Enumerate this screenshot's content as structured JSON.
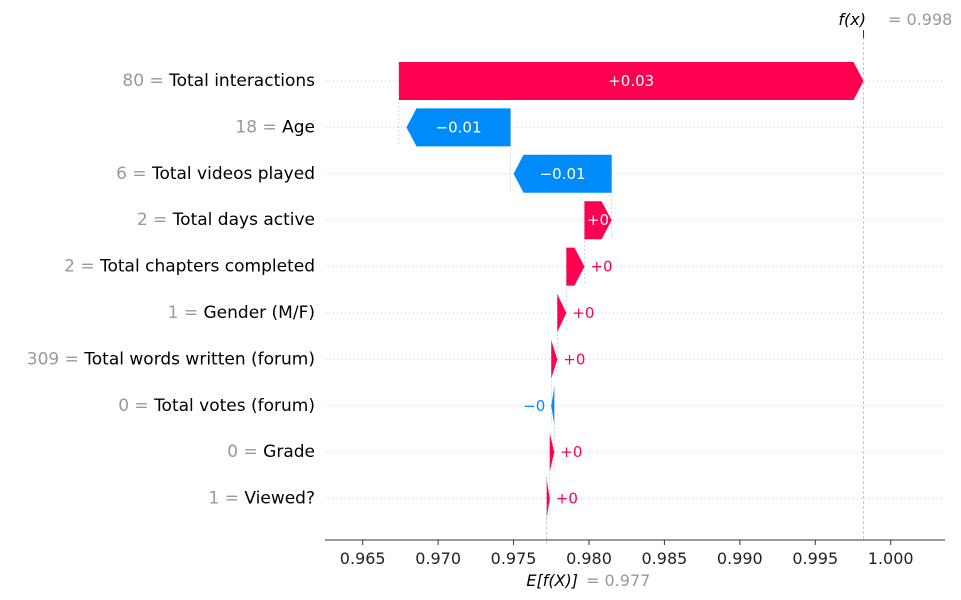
{
  "chart_data": {
    "type": "waterfall",
    "base_value": {
      "label": "E[f(X)]",
      "value_text": "= 0.977",
      "value": 0.9772
    },
    "output_value": {
      "label": "f(x)",
      "value_text": "= 0.998",
      "value": 0.9982
    },
    "features": [
      {
        "value": "80",
        "name": "Total interactions",
        "start": 0.9674,
        "end": 0.9982,
        "label": "+0.03",
        "sign": "pos",
        "label_pos": "inside"
      },
      {
        "value": "18",
        "name": "Age",
        "start": 0.9748,
        "end": 0.9679,
        "label": "−0.01",
        "sign": "neg",
        "label_pos": "inside"
      },
      {
        "value": "6",
        "name": "Total videos played",
        "start": 0.9815,
        "end": 0.975,
        "label": "−0.01",
        "sign": "neg",
        "label_pos": "inside"
      },
      {
        "value": "2",
        "name": "Total days active",
        "start": 0.9797,
        "end": 0.9815,
        "label": "+0",
        "sign": "pos",
        "label_pos": "inside"
      },
      {
        "value": "2",
        "name": "Total chapters completed",
        "start": 0.9785,
        "end": 0.9797,
        "label": "+0",
        "sign": "pos",
        "label_pos": "outside"
      },
      {
        "value": "1",
        "name": "Gender (M/F)",
        "start": 0.9779,
        "end": 0.9785,
        "label": "+0",
        "sign": "pos",
        "label_pos": "outside"
      },
      {
        "value": "309",
        "name": "Total words written (forum)",
        "start": 0.9775,
        "end": 0.9779,
        "label": "+0",
        "sign": "pos",
        "label_pos": "outside"
      },
      {
        "value": "0",
        "name": "Total votes (forum)",
        "start": 0.9777,
        "end": 0.9775,
        "label": "−0",
        "sign": "neg",
        "label_pos": "outside"
      },
      {
        "value": "0",
        "name": "Grade",
        "start": 0.9774,
        "end": 0.9777,
        "label": "+0",
        "sign": "pos",
        "label_pos": "outside"
      },
      {
        "value": "1",
        "name": "Viewed?",
        "start": 0.9772,
        "end": 0.9774,
        "label": "+0",
        "sign": "pos",
        "label_pos": "outside"
      }
    ],
    "x_ticks": [
      "0.965",
      "0.970",
      "0.975",
      "0.980",
      "0.985",
      "0.990",
      "0.995",
      "1.000"
    ],
    "x_tick_values": [
      0.965,
      0.97,
      0.975,
      0.98,
      0.985,
      0.99,
      0.995,
      1.0
    ],
    "xlim": [
      0.9625,
      1.0036
    ],
    "colors": {
      "positive": "#ff0051",
      "negative": "#008bfb",
      "value_text": "#999999",
      "grid": "#cccccc"
    }
  }
}
